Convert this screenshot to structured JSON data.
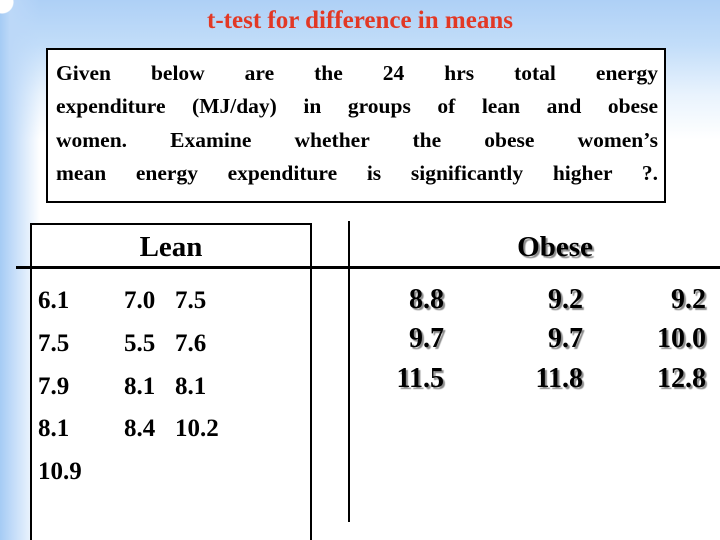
{
  "title": "t-test for difference in means",
  "problem": {
    "lines": [
      "Given below are the 24 hrs total energy",
      "expenditure (MJ/day) in groups of lean and obese",
      "women. Examine whether the obese women’s",
      "mean energy expenditure is significantly higher ?."
    ]
  },
  "lean": {
    "header": "Lean",
    "rows": [
      [
        "6.1",
        "7.0",
        "7.5"
      ],
      [
        "7.5",
        "5.5",
        "7.6"
      ],
      [
        "7.9",
        "8.1",
        "8.1"
      ],
      [
        "8.1",
        "8.4",
        "10.2"
      ],
      [
        "10.9",
        "",
        ""
      ]
    ]
  },
  "obese": {
    "header": "Obese",
    "rows": [
      [
        "8.8",
        "9.2",
        "9.2"
      ],
      [
        "9.7",
        "9.7",
        "10.0"
      ],
      [
        "11.5",
        "11.8",
        "12.8"
      ]
    ]
  },
  "chart_data": [
    {
      "type": "table",
      "title": "Lean",
      "values": [
        6.1,
        7.0,
        7.5,
        7.5,
        5.5,
        7.6,
        7.9,
        8.1,
        8.1,
        8.1,
        8.4,
        10.2,
        10.9
      ]
    },
    {
      "type": "table",
      "title": "Obese",
      "values": [
        8.8,
        9.2,
        9.2,
        9.7,
        9.7,
        10.0,
        11.5,
        11.8,
        12.8
      ]
    }
  ],
  "colors": {
    "title_red": "#e23825",
    "text_black": "#000000",
    "background_blue": "#aed0f6",
    "shadow_gray": "#8c8c8c",
    "border_black": "#000000"
  }
}
